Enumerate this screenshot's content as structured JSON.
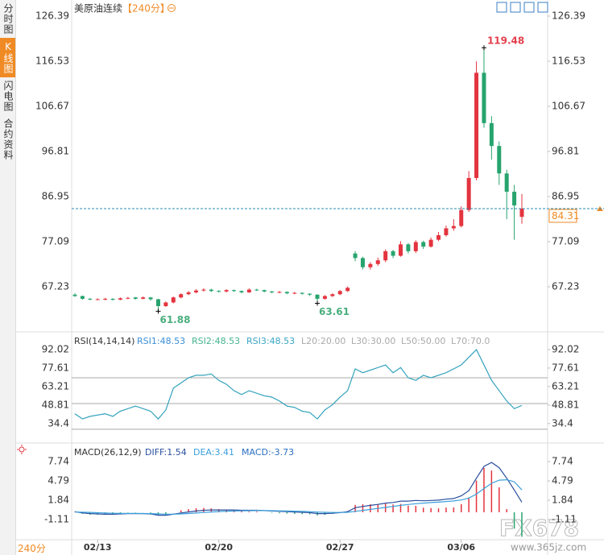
{
  "sidebar": {
    "tabs": [
      "分时图",
      "K线图",
      "闪电图",
      "合约资料"
    ],
    "active_tab": 1,
    "period_selector": "240分"
  },
  "watermark": {
    "brand": "FX678",
    "site": "www.365jz.com"
  },
  "chart_data": [
    {
      "type": "candlestick",
      "title": "美原油连续",
      "period": "【240分】",
      "categories": [
        null,
        null,
        null,
        "02/13",
        null,
        null,
        null,
        null,
        null,
        null,
        null,
        null,
        null,
        null,
        null,
        null,
        null,
        null,
        null,
        "02/20",
        null,
        null,
        null,
        null,
        null,
        null,
        null,
        null,
        null,
        null,
        null,
        null,
        null,
        null,
        null,
        "02/27",
        null,
        null,
        null,
        null,
        null,
        null,
        null,
        null,
        null,
        null,
        null,
        null,
        null,
        null,
        null,
        "03/06",
        null,
        null,
        null,
        null,
        null,
        null,
        null,
        null
      ],
      "open": [
        65.5,
        65.2,
        64.6,
        64.5,
        64.4,
        64.6,
        64.4,
        64.7,
        64.9,
        64.6,
        64.9,
        64.5,
        63.0,
        63.8,
        64.9,
        65.6,
        66.0,
        66.4,
        66.6,
        66.3,
        66.2,
        66.5,
        66.3,
        66.0,
        66.6,
        66.5,
        66.2,
        66.0,
        66.1,
        65.8,
        65.9,
        65.7,
        65.5,
        64.6,
        65.2,
        65.6,
        66.3,
        74.5,
        73.5,
        71.5,
        72.2,
        73.0,
        75.0,
        74.0,
        76.5,
        75.0,
        77.0,
        76.0,
        77.5,
        78.5,
        80.0,
        80.5,
        84.0,
        91.0,
        114.0,
        103.0,
        98.0,
        92.0,
        88.0,
        82.5
      ],
      "high": [
        65.8,
        65.3,
        64.8,
        64.7,
        64.8,
        64.7,
        64.9,
        65.0,
        65.0,
        65.1,
        65.0,
        64.6,
        64.0,
        65.1,
        65.8,
        66.3,
        66.7,
        66.9,
        66.8,
        66.5,
        66.7,
        66.6,
        66.4,
        66.9,
        66.8,
        66.6,
        66.3,
        66.3,
        66.2,
        66.1,
        66.0,
        65.8,
        65.6,
        65.4,
        65.8,
        66.5,
        67.3,
        75.0,
        73.8,
        72.6,
        73.6,
        75.4,
        75.3,
        77.2,
        76.8,
        77.4,
        77.3,
        78.0,
        79.2,
        80.6,
        82.0,
        84.8,
        92.5,
        116.5,
        119.48,
        104.5,
        99.0,
        92.8,
        89.5,
        87.5
      ],
      "low": [
        65.0,
        64.4,
        64.3,
        64.3,
        64.3,
        64.2,
        64.3,
        64.5,
        64.4,
        64.5,
        64.2,
        61.88,
        62.8,
        63.6,
        64.7,
        65.4,
        65.8,
        66.2,
        66.1,
        66.0,
        66.0,
        66.1,
        65.8,
        65.9,
        66.3,
        66.0,
        65.8,
        65.8,
        65.6,
        65.6,
        65.5,
        65.2,
        63.61,
        64.4,
        65.0,
        65.4,
        66.1,
        72.8,
        71.0,
        71.0,
        71.8,
        72.6,
        73.5,
        73.8,
        74.5,
        74.6,
        75.5,
        75.8,
        77.2,
        78.2,
        79.5,
        80.2,
        83.6,
        90.5,
        102.0,
        95.0,
        89.5,
        82.0,
        77.5,
        81.0
      ],
      "close": [
        65.2,
        64.6,
        64.5,
        64.5,
        64.6,
        64.4,
        64.7,
        64.8,
        64.6,
        64.9,
        64.5,
        63.0,
        63.8,
        64.9,
        65.6,
        66.0,
        66.4,
        66.6,
        66.3,
        66.2,
        66.5,
        66.3,
        66.0,
        66.6,
        66.5,
        66.2,
        66.0,
        66.1,
        65.8,
        65.9,
        65.7,
        65.5,
        64.6,
        65.2,
        65.6,
        66.3,
        67.0,
        73.5,
        71.5,
        72.2,
        73.0,
        75.0,
        74.0,
        76.5,
        75.0,
        77.0,
        76.0,
        77.5,
        78.5,
        80.0,
        80.5,
        84.0,
        91.0,
        114.0,
        103.0,
        98.0,
        92.0,
        88.0,
        85.0,
        84.31
      ],
      "up_color": "#e3343f",
      "down_color": "#27a46e",
      "high_color": "#e3404d",
      "low_color": "#4aae7e",
      "price_line_color": "#2a8db5",
      "price_label_color": "#f08a24",
      "ylim": [
        57.72,
        128.5
      ],
      "yticks": [
        126.39,
        116.53,
        106.67,
        96.81,
        86.95,
        77.09,
        67.23
      ]
    },
    {
      "type": "line",
      "title": "RSI(14,14,14)",
      "series": [
        {
          "name": "RSI1:48.53",
          "color": "#3b8fd8",
          "values": [
            42,
            38,
            40,
            41,
            42,
            40,
            44,
            46,
            48,
            46,
            44,
            38,
            45,
            62,
            66,
            70,
            72,
            72,
            73,
            68,
            65,
            60,
            57,
            60,
            58,
            56,
            55,
            52,
            48,
            47,
            44,
            43,
            38,
            45,
            49,
            55,
            60,
            77,
            74,
            76,
            78,
            80,
            74,
            78,
            70,
            68,
            72,
            70,
            72,
            74,
            77,
            80,
            86,
            92,
            80,
            68,
            60,
            52,
            46,
            48.53
          ]
        },
        {
          "name": "RSI2:48.53",
          "color": "#45b38f",
          "values": [
            42,
            38,
            40,
            41,
            42,
            40,
            44,
            46,
            48,
            46,
            44,
            38,
            45,
            62,
            66,
            70,
            72,
            72,
            73,
            68,
            65,
            60,
            57,
            60,
            58,
            56,
            55,
            52,
            48,
            47,
            44,
            43,
            38,
            45,
            49,
            55,
            60,
            77,
            74,
            76,
            78,
            80,
            74,
            78,
            70,
            68,
            72,
            70,
            72,
            74,
            77,
            80,
            86,
            92,
            80,
            68,
            60,
            52,
            46,
            48.53
          ]
        },
        {
          "name": "RSI3:48.53",
          "color": "#3aa6c4",
          "values": [
            42,
            38,
            40,
            41,
            42,
            40,
            44,
            46,
            48,
            46,
            44,
            38,
            45,
            62,
            66,
            70,
            72,
            72,
            73,
            68,
            65,
            60,
            57,
            60,
            58,
            56,
            55,
            52,
            48,
            47,
            44,
            43,
            38,
            45,
            49,
            55,
            60,
            77,
            74,
            76,
            78,
            80,
            74,
            78,
            70,
            68,
            72,
            70,
            72,
            74,
            77,
            80,
            86,
            92,
            80,
            68,
            60,
            52,
            46,
            48.53
          ]
        }
      ],
      "levels": [
        {
          "value": 20,
          "label": "L20:20.00"
        },
        {
          "value": 30,
          "label": "L30:30.00"
        },
        {
          "value": 50,
          "label": "L50:50.00"
        },
        {
          "value": 70,
          "label": "L70:70.0"
        }
      ],
      "level_color": "#a9a9a9",
      "ylim": [
        20.5,
        102
      ],
      "yticks": [
        92.02,
        77.61,
        63.21,
        48.81,
        34.4
      ]
    },
    {
      "type": "macd",
      "title": "MACD(26,12,9)",
      "series": [
        {
          "name": "DIFF:1.54",
          "type": "line",
          "color": "#2a4f9e",
          "values": [
            0.1,
            -0.1,
            -0.2,
            -0.25,
            -0.3,
            -0.3,
            -0.25,
            -0.2,
            -0.2,
            -0.2,
            -0.25,
            -0.45,
            -0.45,
            -0.3,
            -0.1,
            0.05,
            0.2,
            0.3,
            0.35,
            0.35,
            0.35,
            0.35,
            0.3,
            0.3,
            0.3,
            0.25,
            0.2,
            0.15,
            0.1,
            0.05,
            0,
            -0.05,
            -0.2,
            -0.2,
            -0.15,
            -0.05,
            0.1,
            0.7,
            0.9,
            1.05,
            1.2,
            1.4,
            1.5,
            1.7,
            1.7,
            1.8,
            1.75,
            1.8,
            1.85,
            2.0,
            2.1,
            2.5,
            3.3,
            5.2,
            7.0,
            7.6,
            6.8,
            5.2,
            3.4,
            1.54
          ]
        },
        {
          "name": "DEA:3.41",
          "type": "line",
          "color": "#3ba0dc",
          "values": [
            0.05,
            0.02,
            -0.02,
            -0.07,
            -0.11,
            -0.15,
            -0.17,
            -0.18,
            -0.18,
            -0.19,
            -0.2,
            -0.25,
            -0.29,
            -0.29,
            -0.25,
            -0.19,
            -0.11,
            -0.03,
            0.05,
            0.11,
            0.16,
            0.2,
            0.22,
            0.24,
            0.25,
            0.25,
            0.24,
            0.22,
            0.2,
            0.17,
            0.14,
            0.1,
            0.04,
            0,
            -0.03,
            -0.03,
            0,
            0.14,
            0.29,
            0.44,
            0.59,
            0.75,
            0.9,
            1.06,
            1.19,
            1.31,
            1.4,
            1.48,
            1.55,
            1.64,
            1.73,
            1.88,
            2.17,
            2.78,
            3.62,
            4.42,
            4.9,
            4.96,
            4.65,
            3.41
          ]
        },
        {
          "name": "MACD:-3.73",
          "type": "bar",
          "color": "#2a6fc0",
          "values": [
            0.1,
            -0.24,
            -0.36,
            -0.36,
            -0.38,
            -0.3,
            -0.16,
            -0.04,
            -0.04,
            -0.02,
            -0.1,
            -0.4,
            -0.32,
            -0.02,
            0.3,
            0.48,
            0.62,
            0.66,
            0.6,
            0.48,
            0.38,
            0.3,
            0.16,
            0.12,
            0.1,
            0,
            -0.08,
            -0.14,
            -0.2,
            -0.24,
            -0.28,
            -0.3,
            -0.48,
            -0.4,
            -0.24,
            -0.04,
            0.2,
            1.12,
            1.22,
            1.22,
            1.22,
            1.3,
            1.2,
            1.28,
            1.02,
            0.98,
            0.7,
            0.64,
            0.6,
            0.72,
            0.74,
            1.24,
            2.26,
            4.84,
            6.76,
            6.36,
            3.8,
            0.48,
            -2.5,
            -3.73
          ]
        }
      ],
      "up_color": "#e3343f",
      "down_color": "#27a46e",
      "ylim": [
        -4.18,
        9.95
      ],
      "yticks": [
        7.74,
        4.79,
        1.84,
        -1.11
      ]
    }
  ]
}
